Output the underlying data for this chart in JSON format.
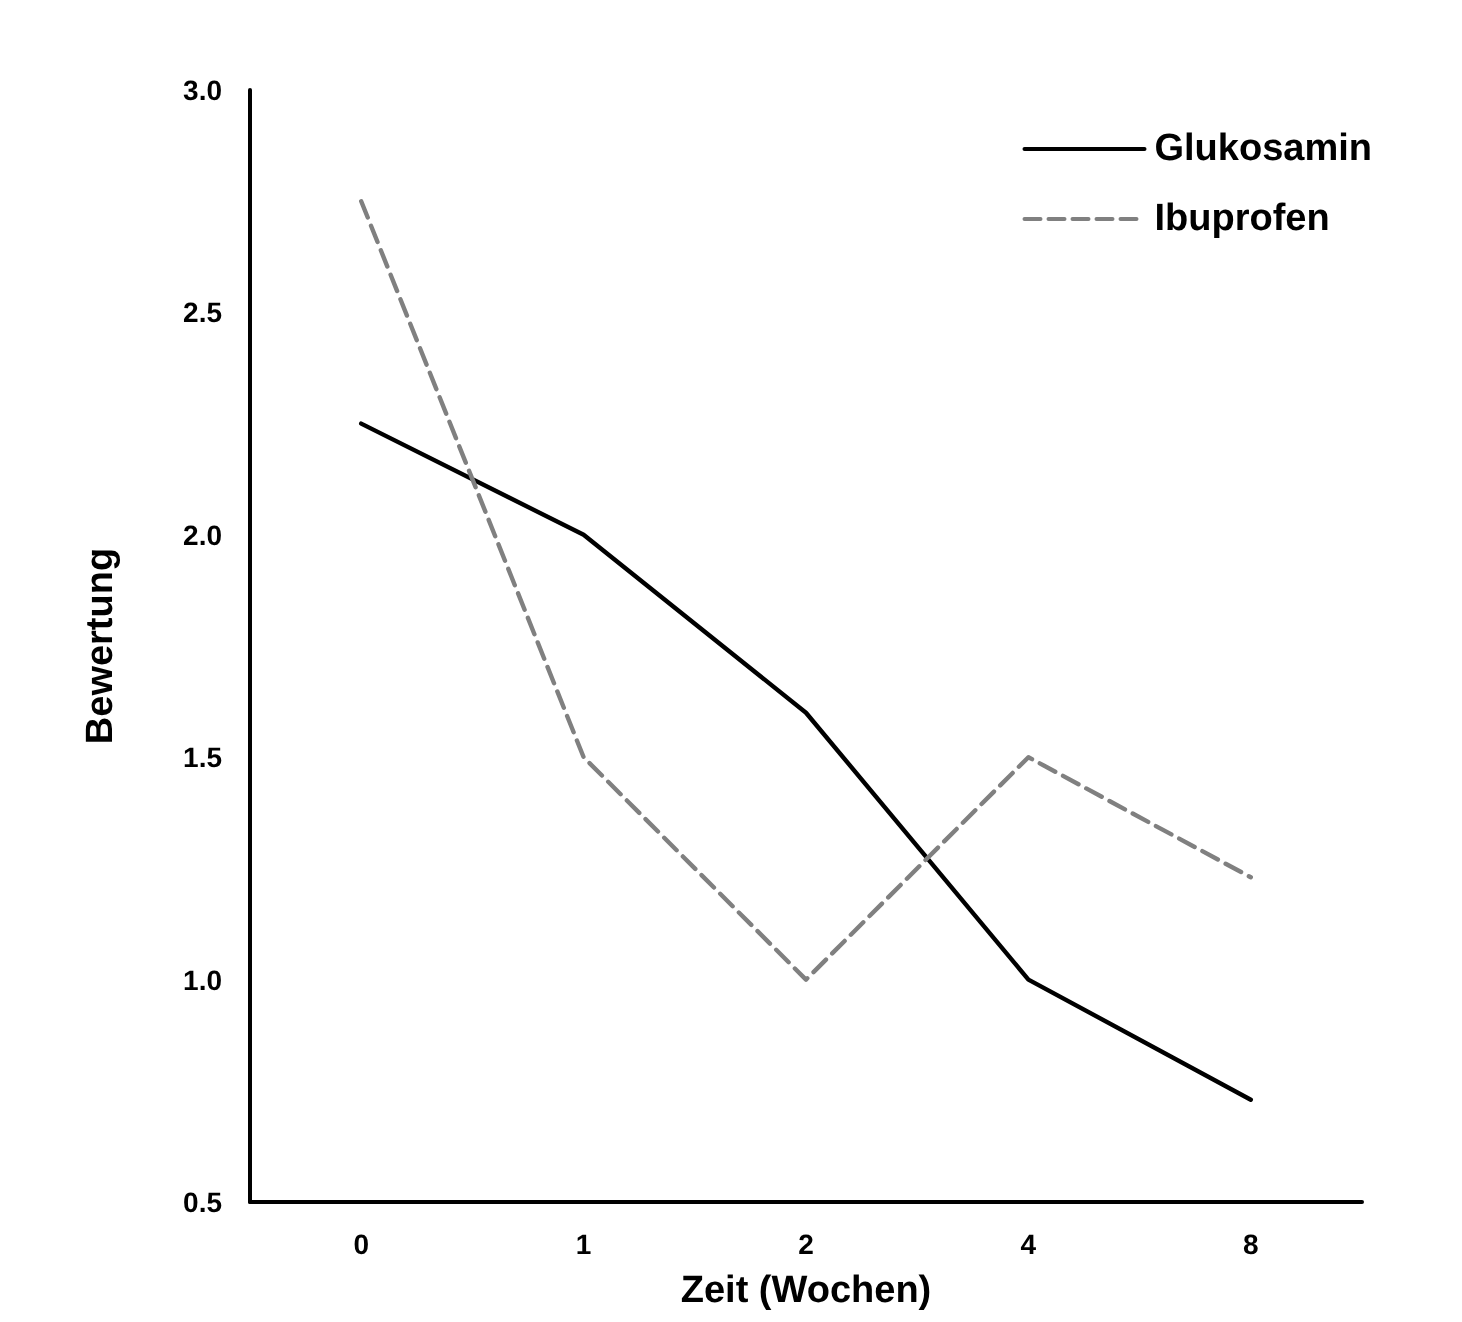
{
  "chart_data": {
    "type": "line",
    "xlabel": "Zeit (Wochen)",
    "ylabel": "Bewertung",
    "categories": [
      "0",
      "1",
      "2",
      "4",
      "8"
    ],
    "series": [
      {
        "name": "Glukosamin",
        "color": "#000000",
        "line_style": "solid",
        "values": [
          2.25,
          2.0,
          1.6,
          1.0,
          0.73
        ]
      },
      {
        "name": "Ibuprofen",
        "color": "#808080",
        "line_style": "dashed",
        "values": [
          2.75,
          1.5,
          1.0,
          1.5,
          1.23
        ]
      }
    ],
    "ylim": [
      0.5,
      3.0
    ],
    "yticks": [
      {
        "value": 0.5,
        "label": "0.5"
      },
      {
        "value": 1.0,
        "label": "1.0"
      },
      {
        "value": 1.5,
        "label": "1.5"
      },
      {
        "value": 2.0,
        "label": "2.0"
      },
      {
        "value": 2.5,
        "label": "2.5"
      },
      {
        "value": 3.0,
        "label": "3.0"
      }
    ],
    "grid": false,
    "legend": "top right",
    "marker": "none"
  }
}
